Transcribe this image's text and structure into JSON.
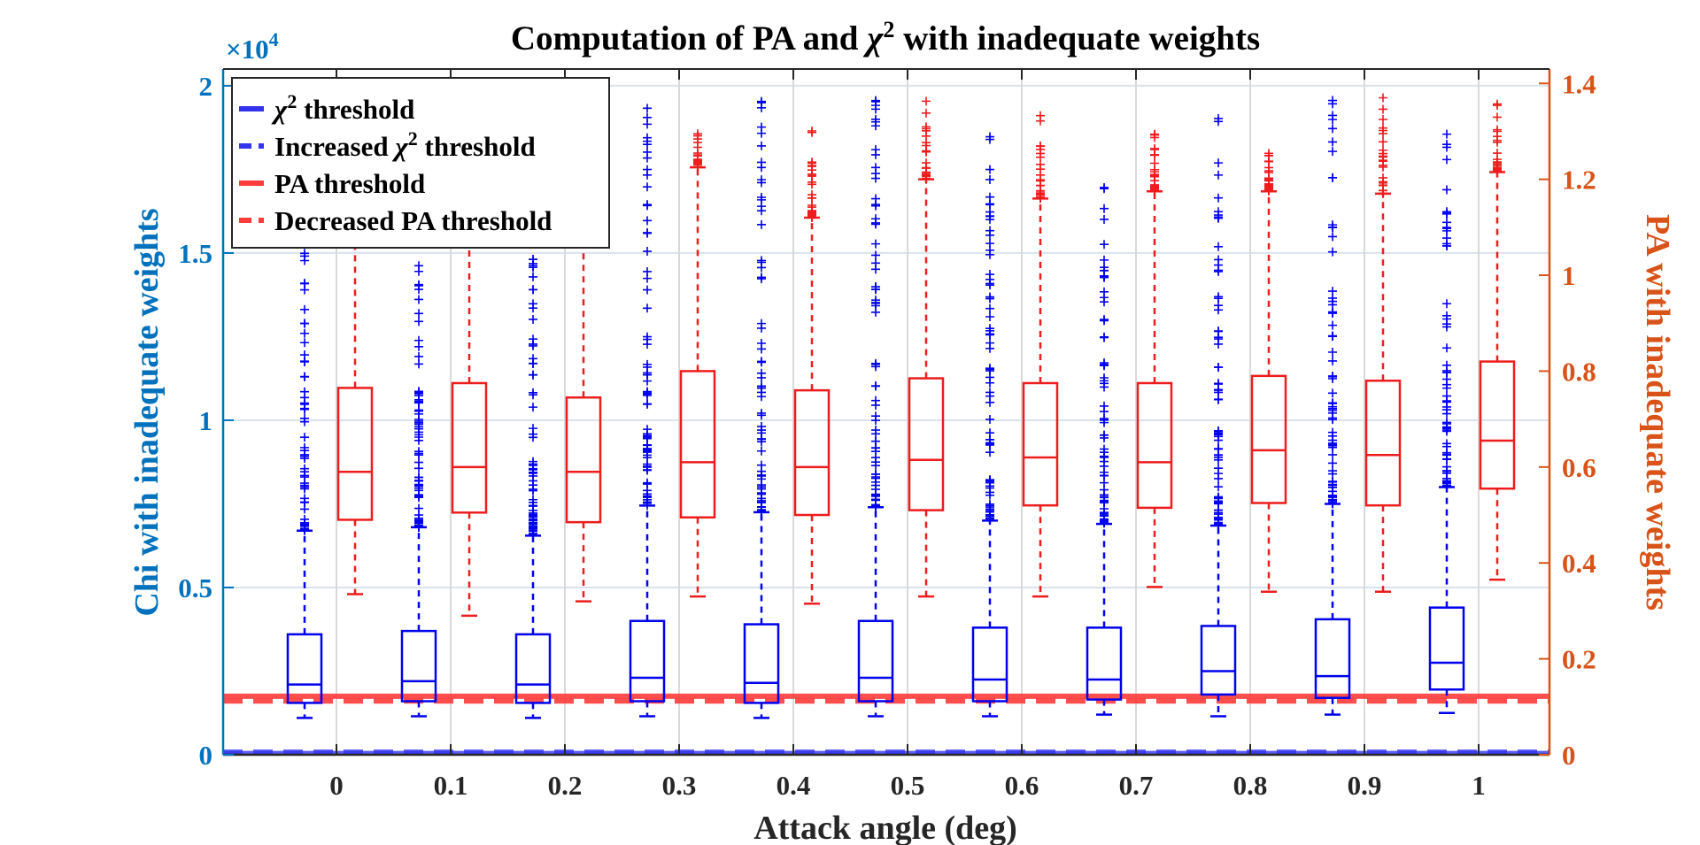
{
  "chart_data": {
    "type": "box",
    "title_parts": {
      "prefix": "Computation of PA and ",
      "symbol": "χ",
      "sup": "2",
      "suffix": " with inadequate weights"
    },
    "xlabel": "Attack angle (deg)",
    "ylabel_left": "Chi with inadequate weights",
    "ylabel_right": "PA with inadequate weights",
    "left_exponent": {
      "base": "×10",
      "exp": "4"
    },
    "categories": [
      "0",
      "0.1",
      "0.2",
      "0.3",
      "0.4",
      "0.5",
      "0.6",
      "0.7",
      "0.8",
      "0.9",
      "1"
    ],
    "ylim_left": [
      0,
      2.05
    ],
    "ylim_right": [
      0,
      1.43
    ],
    "yticks_left": [
      "0",
      "0.5",
      "1",
      "1.5",
      "2"
    ],
    "yticks_right": [
      "0",
      "0.2",
      "0.4",
      "0.6",
      "0.8",
      "1",
      "1.2",
      "1.4"
    ],
    "grid": true,
    "legend_position": "top-left",
    "colors": {
      "chi": "#0000ee",
      "pa": "#ee1c1c",
      "left_axis": "#0072bd",
      "right_axis": "#d95319",
      "chi_threshold": "#3333ee",
      "pa_threshold": "#ff3b3b"
    },
    "legend": [
      {
        "pre": "",
        "symbol": "χ",
        "sup": "2",
        "post": " threshold",
        "style": "solid",
        "color": "#3333ee"
      },
      {
        "pre": "Increased ",
        "symbol": "χ",
        "sup": "2",
        "post": " threshold",
        "style": "dashed",
        "color": "#3333ee"
      },
      {
        "pre": "PA threshold",
        "symbol": "",
        "sup": "",
        "post": "",
        "style": "solid",
        "color": "#ff3b3b"
      },
      {
        "pre": "Decreased PA threshold",
        "symbol": "",
        "sup": "",
        "post": "",
        "style": "dashed",
        "color": "#ff3b3b"
      }
    ],
    "series": [
      {
        "name": "Chi with inadequate weights",
        "axis": "left",
        "units": "x10^4",
        "boxes": [
          {
            "whisker_low": 0.11,
            "q1": 0.155,
            "median": 0.21,
            "q3": 0.36,
            "whisker_high": 0.67,
            "outlier_max": 1.98
          },
          {
            "whisker_low": 0.115,
            "q1": 0.16,
            "median": 0.22,
            "q3": 0.37,
            "whisker_high": 0.68,
            "outlier_max": 1.5
          },
          {
            "whisker_low": 0.11,
            "q1": 0.155,
            "median": 0.21,
            "q3": 0.36,
            "whisker_high": 0.655,
            "outlier_max": 1.5
          },
          {
            "whisker_low": 0.115,
            "q1": 0.16,
            "median": 0.23,
            "q3": 0.4,
            "whisker_high": 0.745,
            "outlier_max": 1.97
          },
          {
            "whisker_low": 0.11,
            "q1": 0.155,
            "median": 0.215,
            "q3": 0.39,
            "whisker_high": 0.725,
            "outlier_max": 1.96
          },
          {
            "whisker_low": 0.115,
            "q1": 0.16,
            "median": 0.23,
            "q3": 0.4,
            "whisker_high": 0.74,
            "outlier_max": 1.97
          },
          {
            "whisker_low": 0.115,
            "q1": 0.16,
            "median": 0.225,
            "q3": 0.38,
            "whisker_high": 0.7,
            "outlier_max": 1.86
          },
          {
            "whisker_low": 0.12,
            "q1": 0.165,
            "median": 0.225,
            "q3": 0.38,
            "whisker_high": 0.69,
            "outlier_max": 1.72
          },
          {
            "whisker_low": 0.115,
            "q1": 0.18,
            "median": 0.25,
            "q3": 0.385,
            "whisker_high": 0.685,
            "outlier_max": 1.93
          },
          {
            "whisker_low": 0.12,
            "q1": 0.17,
            "median": 0.235,
            "q3": 0.405,
            "whisker_high": 0.75,
            "outlier_max": 1.99
          },
          {
            "whisker_low": 0.125,
            "q1": 0.195,
            "median": 0.275,
            "q3": 0.44,
            "whisker_high": 0.8,
            "outlier_max": 1.86
          }
        ]
      },
      {
        "name": "PA with inadequate weights",
        "axis": "right",
        "units": "",
        "boxes": [
          {
            "whisker_low": 0.335,
            "q1": 0.49,
            "median": 0.59,
            "q3": 0.765,
            "whisker_high": 1.1,
            "outlier_max": 1.1
          },
          {
            "whisker_low": 0.29,
            "q1": 0.505,
            "median": 0.6,
            "q3": 0.775,
            "whisker_high": 1.1,
            "outlier_max": 1.1
          },
          {
            "whisker_low": 0.32,
            "q1": 0.485,
            "median": 0.59,
            "q3": 0.745,
            "whisker_high": 1.1,
            "outlier_max": 1.1
          },
          {
            "whisker_low": 0.33,
            "q1": 0.495,
            "median": 0.61,
            "q3": 0.8,
            "whisker_high": 1.225,
            "outlier_max": 1.3
          },
          {
            "whisker_low": 0.315,
            "q1": 0.5,
            "median": 0.6,
            "q3": 0.76,
            "whisker_high": 1.12,
            "outlier_max": 1.305
          },
          {
            "whisker_low": 0.33,
            "q1": 0.51,
            "median": 0.615,
            "q3": 0.785,
            "whisker_high": 1.2,
            "outlier_max": 1.365
          },
          {
            "whisker_low": 0.33,
            "q1": 0.52,
            "median": 0.62,
            "q3": 0.775,
            "whisker_high": 1.16,
            "outlier_max": 1.34
          },
          {
            "whisker_low": 0.35,
            "q1": 0.515,
            "median": 0.61,
            "q3": 0.775,
            "whisker_high": 1.175,
            "outlier_max": 1.315
          },
          {
            "whisker_low": 0.34,
            "q1": 0.525,
            "median": 0.635,
            "q3": 0.79,
            "whisker_high": 1.175,
            "outlier_max": 1.255
          },
          {
            "whisker_low": 0.34,
            "q1": 0.52,
            "median": 0.625,
            "q3": 0.78,
            "whisker_high": 1.17,
            "outlier_max": 1.375
          },
          {
            "whisker_low": 0.365,
            "q1": 0.555,
            "median": 0.655,
            "q3": 0.82,
            "whisker_high": 1.215,
            "outlier_max": 1.36
          }
        ]
      }
    ],
    "thresholds": {
      "chi_threshold": 0.005,
      "chi_increased": 0.009,
      "pa_threshold": 0.122,
      "pa_decreased": 0.112
    }
  }
}
